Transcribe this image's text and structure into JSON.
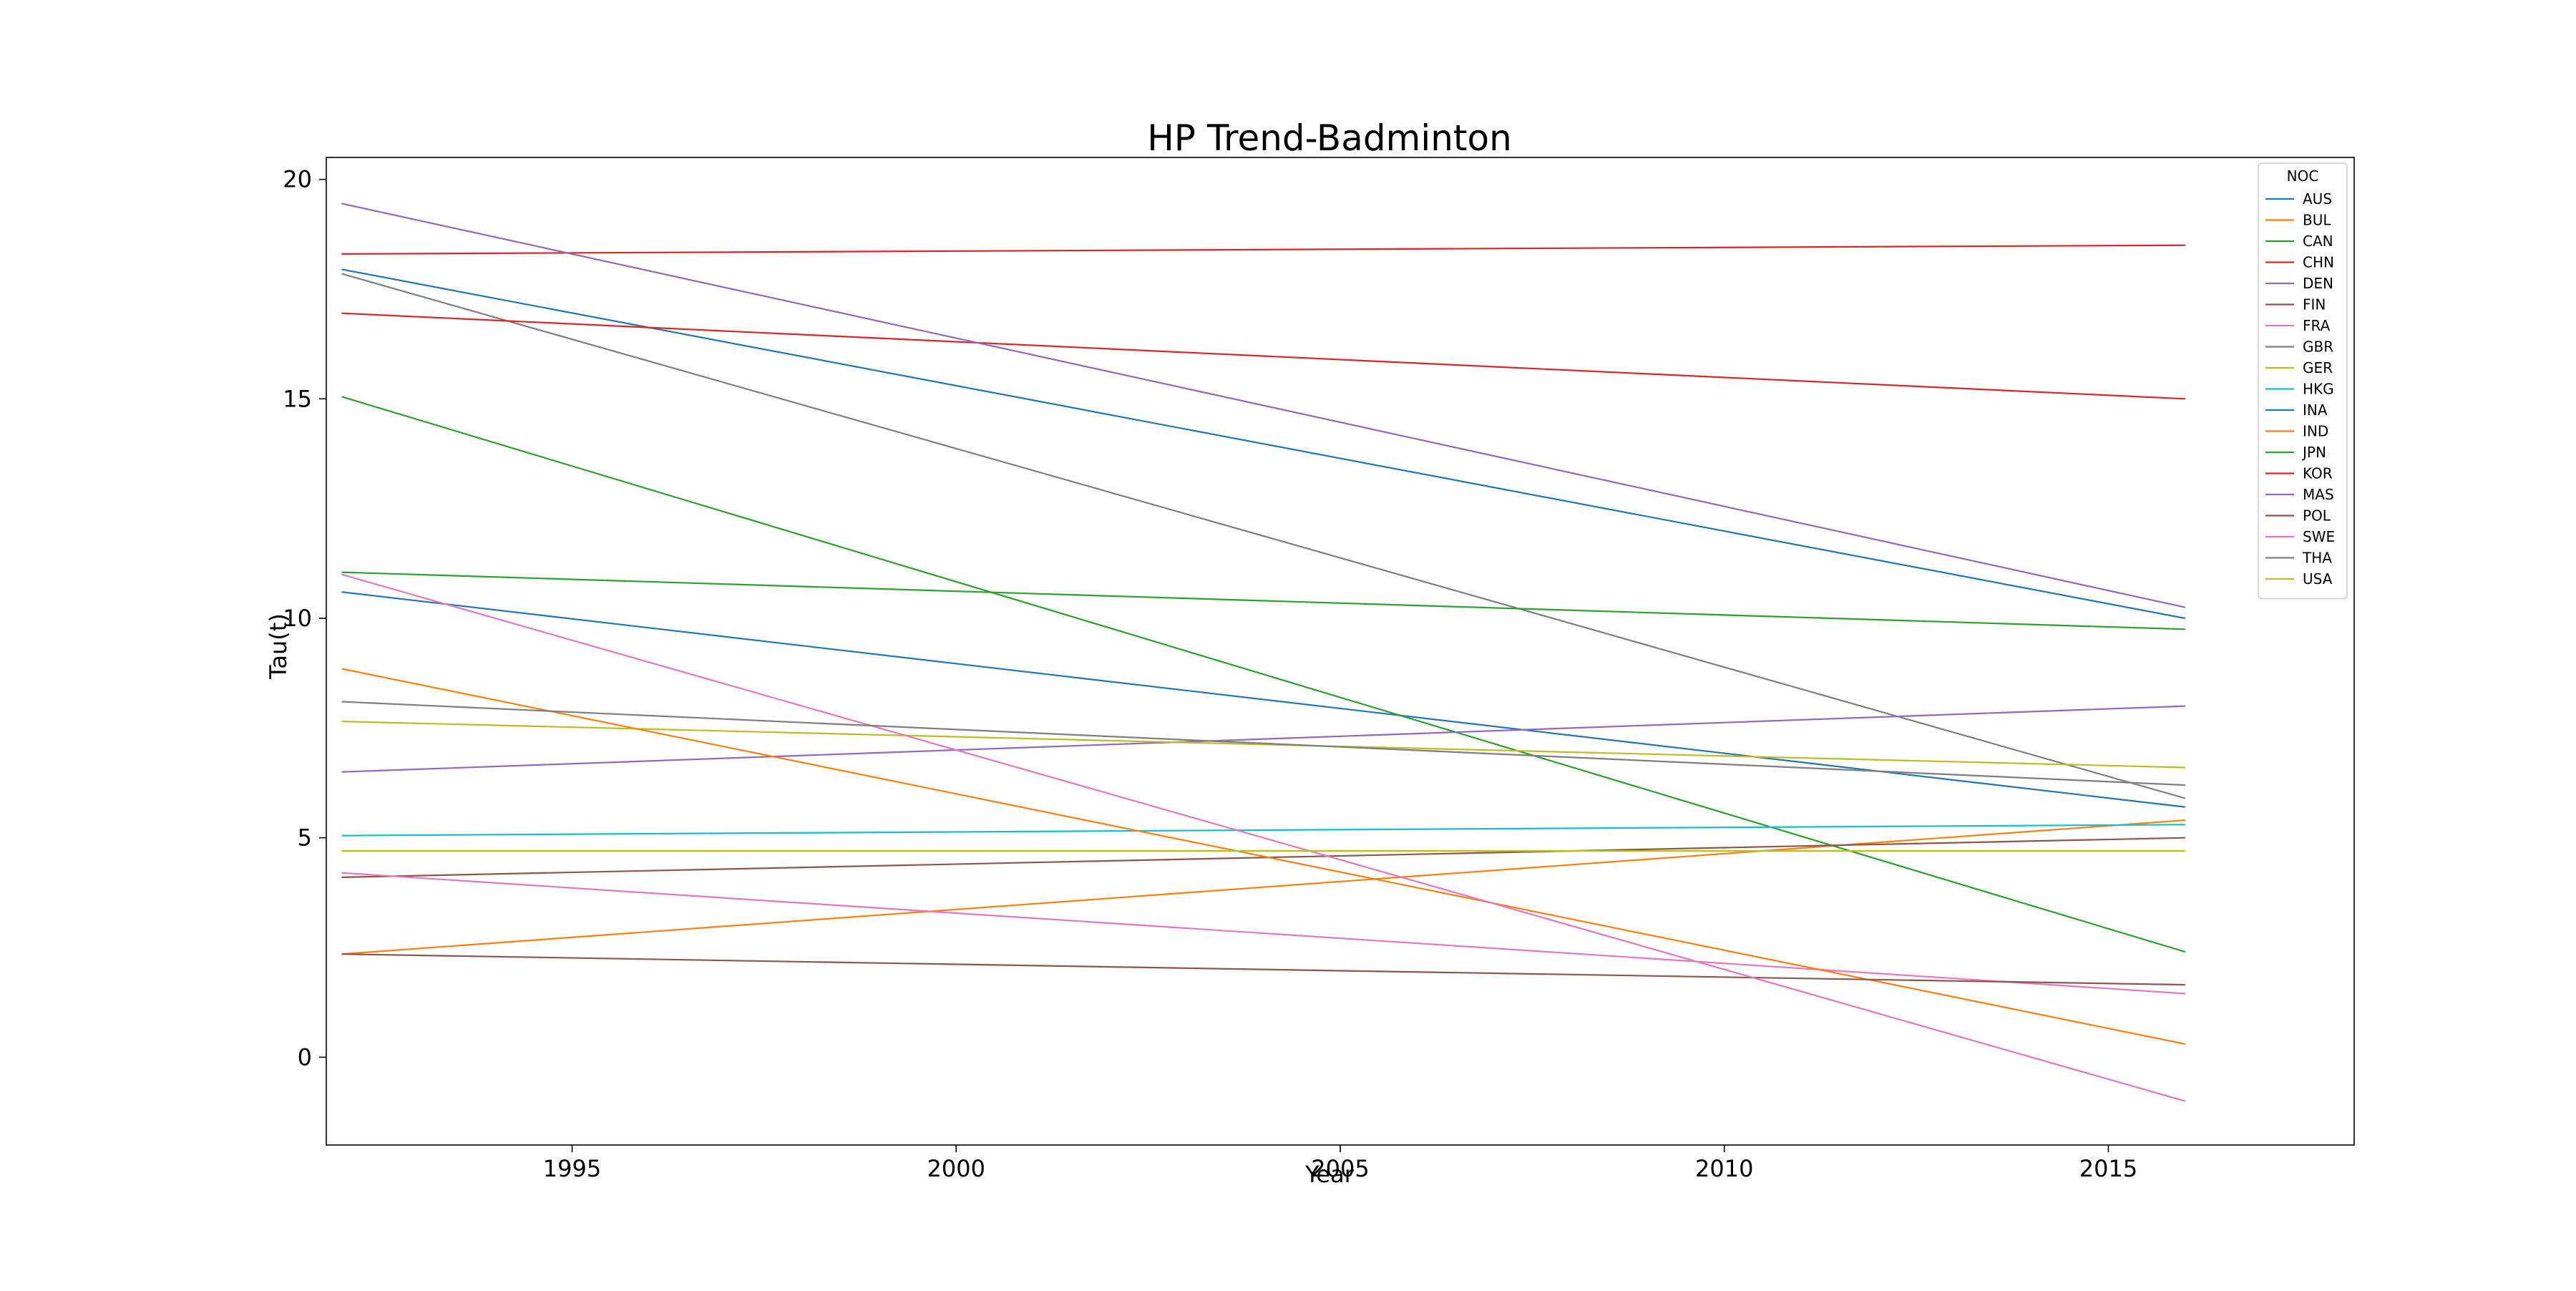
{
  "chart_data": {
    "type": "line",
    "title": "HP Trend-Badminton",
    "xlabel": "Year",
    "ylabel": "Tau(t)",
    "xlim": [
      1991.8,
      2018.2
    ],
    "ylim": [
      -2.0,
      20.5
    ],
    "x_ticks": [
      1995,
      2000,
      2005,
      2010,
      2015
    ],
    "y_ticks": [
      0,
      5,
      10,
      15,
      20
    ],
    "grid": false,
    "legend": {
      "title": "NOC",
      "placement": "top-right"
    },
    "series": [
      {
        "name": "AUS",
        "color": "#1f77b4",
        "x": [
          1992,
          2016
        ],
        "y": [
          10.6,
          5.7
        ]
      },
      {
        "name": "BUL",
        "color": "#ff7f0e",
        "x": [
          1992,
          2016
        ],
        "y": [
          2.35,
          5.4
        ]
      },
      {
        "name": "CAN",
        "color": "#2ca02c",
        "x": [
          1992,
          2016
        ],
        "y": [
          15.05,
          2.4
        ]
      },
      {
        "name": "CHN",
        "color": "#d62728",
        "x": [
          1992,
          2016
        ],
        "y": [
          18.3,
          18.5
        ]
      },
      {
        "name": "DEN",
        "color": "#9467bd",
        "x": [
          1992,
          2016
        ],
        "y": [
          6.5,
          8.0
        ]
      },
      {
        "name": "FIN",
        "color": "#8c564b",
        "x": [
          1992,
          2016
        ],
        "y": [
          4.1,
          5.0
        ]
      },
      {
        "name": "FRA",
        "color": "#e377c2",
        "x": [
          1992,
          2016
        ],
        "y": [
          4.2,
          1.45
        ]
      },
      {
        "name": "GBR",
        "color": "#7f7f7f",
        "x": [
          1992,
          2016
        ],
        "y": [
          17.85,
          5.9
        ]
      },
      {
        "name": "GER",
        "color": "#bcbd22",
        "x": [
          1992,
          2016
        ],
        "y": [
          7.65,
          6.6
        ]
      },
      {
        "name": "HKG",
        "color": "#17becf",
        "x": [
          1992,
          2016
        ],
        "y": [
          5.05,
          5.3
        ]
      },
      {
        "name": "INA",
        "color": "#1f77b4",
        "x": [
          1992,
          2016
        ],
        "y": [
          17.95,
          10.0
        ]
      },
      {
        "name": "IND",
        "color": "#ff7f0e",
        "x": [
          1992,
          2016
        ],
        "y": [
          8.85,
          0.3
        ]
      },
      {
        "name": "JPN",
        "color": "#2ca02c",
        "x": [
          1992,
          2016
        ],
        "y": [
          11.05,
          9.75
        ]
      },
      {
        "name": "KOR",
        "color": "#d62728",
        "x": [
          1992,
          2016
        ],
        "y": [
          16.95,
          15.0
        ]
      },
      {
        "name": "MAS",
        "color": "#9467bd",
        "x": [
          1992,
          2016
        ],
        "y": [
          19.45,
          10.25
        ]
      },
      {
        "name": "POL",
        "color": "#8c564b",
        "x": [
          1992,
          2016
        ],
        "y": [
          2.35,
          1.65
        ]
      },
      {
        "name": "SWE",
        "color": "#e377c2",
        "x": [
          1992,
          2016
        ],
        "y": [
          11.0,
          -1.0
        ]
      },
      {
        "name": "THA",
        "color": "#7f7f7f",
        "x": [
          1992,
          2016
        ],
        "y": [
          8.1,
          6.2
        ]
      },
      {
        "name": "USA",
        "color": "#bcbd22",
        "x": [
          1992,
          2016
        ],
        "y": [
          4.7,
          4.7
        ]
      }
    ]
  }
}
